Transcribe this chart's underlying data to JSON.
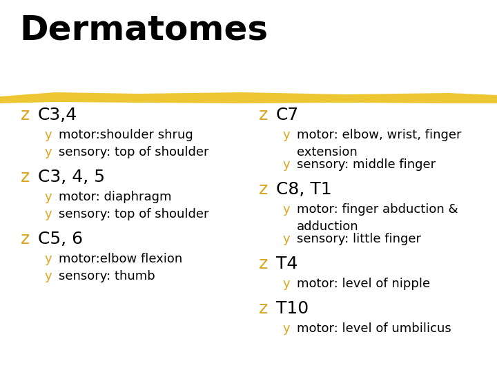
{
  "title": "Dermatomes",
  "background_color": "#ffffff",
  "title_color": "#000000",
  "title_fontsize": 36,
  "highlight_color": "#E8B800",
  "bullet_color": "#DAA520",
  "header_color": "#000000",
  "item_text_color": "#000000",
  "left_column": [
    {
      "header": "C3,4",
      "items": [
        "motor:shoulder shrug",
        "sensory: top of shoulder"
      ]
    },
    {
      "header": "C3, 4, 5",
      "items": [
        "motor: diaphragm",
        "sensory: top of shoulder"
      ]
    },
    {
      "header": "C5, 6",
      "items": [
        "motor:elbow flexion",
        "sensory: thumb"
      ]
    }
  ],
  "right_column": [
    {
      "header": "C7",
      "items": [
        [
          "motor: elbow, wrist, finger",
          "extension"
        ],
        [
          "sensory: middle finger"
        ]
      ]
    },
    {
      "header": "C8, T1",
      "items": [
        [
          "motor: finger abduction &",
          "adduction"
        ],
        [
          "sensory: little finger"
        ]
      ]
    },
    {
      "header": "T4",
      "items": [
        [
          "motor: level of nipple"
        ]
      ]
    },
    {
      "header": "T10",
      "items": [
        [
          "motor: level of umbilicus"
        ]
      ]
    }
  ]
}
